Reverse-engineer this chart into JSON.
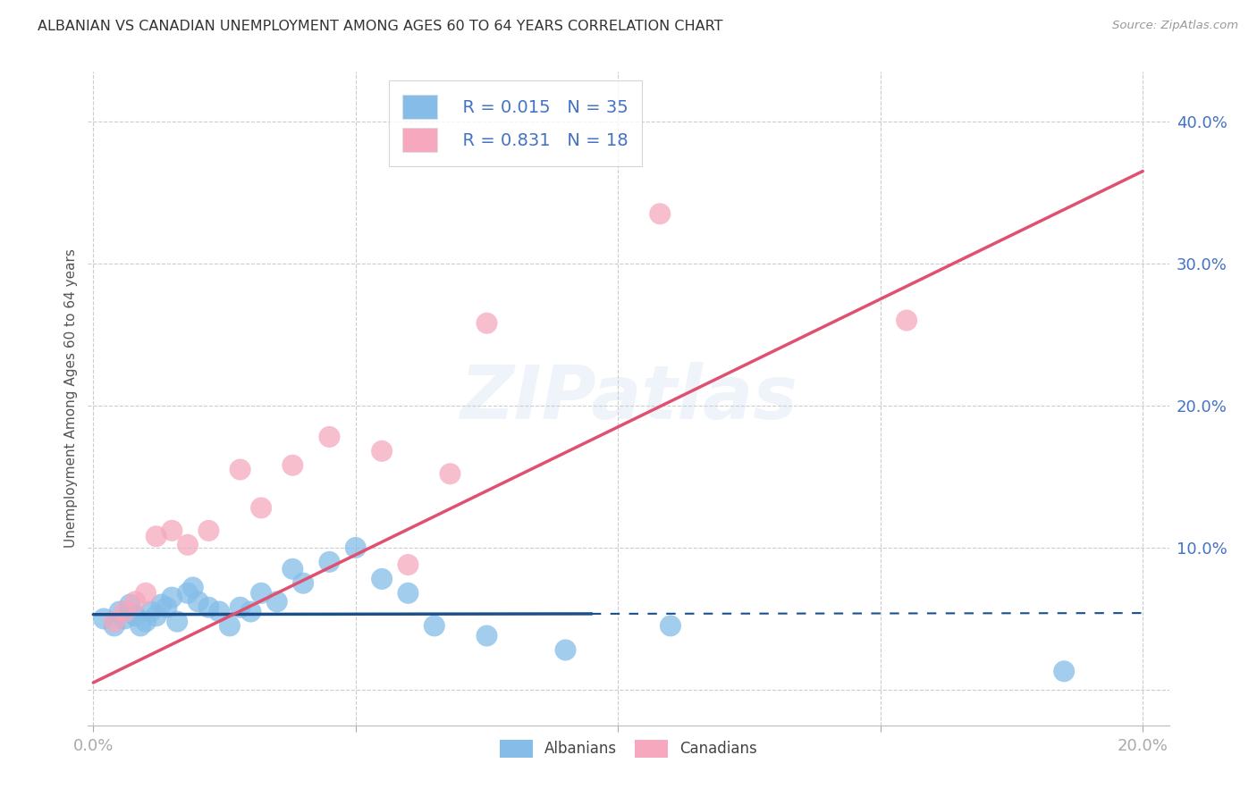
{
  "title": "ALBANIAN VS CANADIAN UNEMPLOYMENT AMONG AGES 60 TO 64 YEARS CORRELATION CHART",
  "source": "Source: ZipAtlas.com",
  "ylabel": "Unemployment Among Ages 60 to 64 years",
  "xlim": [
    -0.001,
    0.205
  ],
  "ylim": [
    -0.025,
    0.435
  ],
  "xticks": [
    0.0,
    0.05,
    0.1,
    0.15,
    0.2
  ],
  "yticks": [
    0.0,
    0.1,
    0.2,
    0.3,
    0.4
  ],
  "background_color": "#ffffff",
  "grid_color": "#cccccc",
  "albanians_color": "#85bde8",
  "canadians_color": "#f5a8be",
  "albanian_line_color": "#1a4f8a",
  "canadian_line_color": "#e05070",
  "legend_R_albanian": "R = 0.015",
  "legend_N_albanian": "N = 35",
  "legend_R_canadian": "R = 0.831",
  "legend_N_canadian": "N = 18",
  "watermark": "ZIPatlas",
  "text_color": "#4472c4",
  "alb_line_x0": 0.0,
  "alb_line_y0": 0.053,
  "alb_line_x1": 0.2,
  "alb_line_y1": 0.054,
  "alb_line_solid_end": 0.095,
  "can_line_x0": 0.0,
  "can_line_y0": 0.005,
  "can_line_x1": 0.2,
  "can_line_y1": 0.365,
  "albanians_x": [
    0.002,
    0.004,
    0.005,
    0.006,
    0.007,
    0.008,
    0.009,
    0.01,
    0.011,
    0.012,
    0.013,
    0.014,
    0.015,
    0.016,
    0.018,
    0.019,
    0.02,
    0.022,
    0.024,
    0.026,
    0.028,
    0.03,
    0.032,
    0.035,
    0.038,
    0.04,
    0.045,
    0.05,
    0.055,
    0.06,
    0.065,
    0.075,
    0.09,
    0.11,
    0.185
  ],
  "albanians_y": [
    0.05,
    0.045,
    0.055,
    0.05,
    0.06,
    0.052,
    0.045,
    0.048,
    0.055,
    0.052,
    0.06,
    0.058,
    0.065,
    0.048,
    0.068,
    0.072,
    0.062,
    0.058,
    0.055,
    0.045,
    0.058,
    0.055,
    0.068,
    0.062,
    0.085,
    0.075,
    0.09,
    0.1,
    0.078,
    0.068,
    0.045,
    0.038,
    0.028,
    0.045,
    0.013
  ],
  "canadians_x": [
    0.004,
    0.006,
    0.008,
    0.01,
    0.012,
    0.015,
    0.018,
    0.022,
    0.028,
    0.032,
    0.038,
    0.045,
    0.055,
    0.06,
    0.068,
    0.075,
    0.108,
    0.155
  ],
  "canadians_y": [
    0.048,
    0.055,
    0.062,
    0.068,
    0.108,
    0.112,
    0.102,
    0.112,
    0.155,
    0.128,
    0.158,
    0.178,
    0.168,
    0.088,
    0.152,
    0.258,
    0.335,
    0.26
  ]
}
